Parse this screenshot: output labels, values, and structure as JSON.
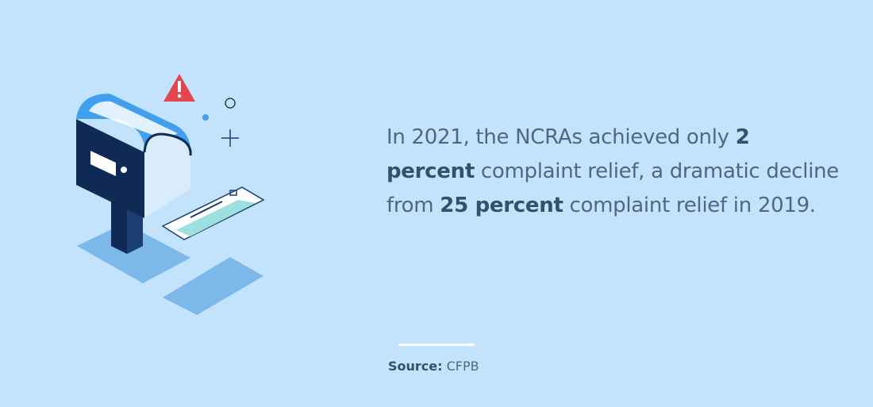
{
  "statement": {
    "segments": [
      "In 2021, the NCRAs achieved only",
      "2 percent",
      "complaint relief, a dramatic decline from",
      "25 percent",
      "complaint relief in 2019."
    ]
  },
  "source": {
    "label": "Source:",
    "name": "CFPB"
  }
}
